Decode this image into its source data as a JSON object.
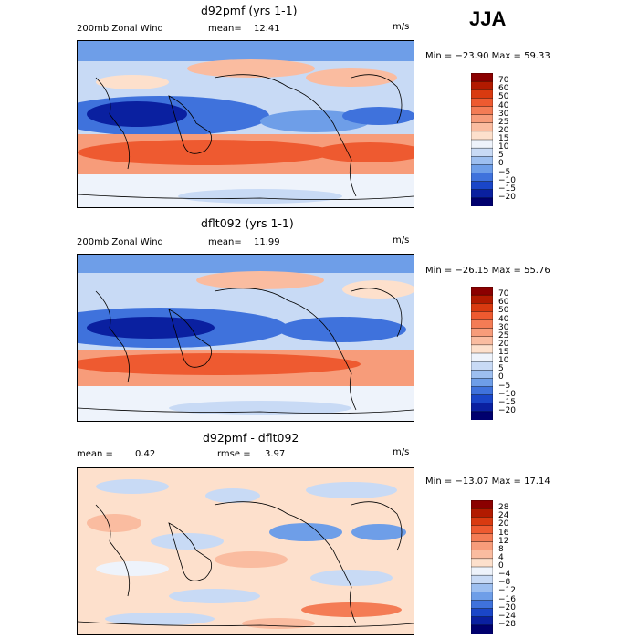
{
  "season": "JJA",
  "panels": [
    {
      "title": "d92pmf (yrs 1-1)",
      "left_label": "200mb Zonal Wind",
      "stat1_label": "mean=",
      "stat1_value": "12.41",
      "stat2_label": "",
      "stat2_value": "",
      "units": "m/s",
      "minmax": "Min = −23.90  Max =   59.33",
      "colorbar": {
        "levels": [
          "70",
          "60",
          "50",
          "40",
          "30",
          "25",
          "20",
          "15",
          "10",
          "5",
          "0",
          "−5",
          "−10",
          "−15",
          "−20"
        ],
        "colors": [
          "#8b0000",
          "#b21a00",
          "#d93a10",
          "#ee5a30",
          "#f47c55",
          "#f79c7a",
          "#fabca0",
          "#fde0cc",
          "#eef3fb",
          "#c8daf5",
          "#9dbff0",
          "#6e9ee8",
          "#3f72dc",
          "#1a46c8",
          "#0a20a0",
          "#00006e"
        ]
      },
      "chart_data": {
        "type": "heatmap",
        "title": "d92pmf (yrs 1-1)",
        "variable": "200mb Zonal Wind",
        "units": "m/s",
        "mean": 12.41,
        "min": -23.9,
        "max": 59.33,
        "contour_levels": [
          -20,
          -15,
          -10,
          -5,
          0,
          5,
          10,
          15,
          20,
          25,
          30,
          40,
          50,
          60,
          70
        ]
      }
    },
    {
      "title": "dflt092 (yrs 1-1)",
      "left_label": "200mb Zonal Wind",
      "stat1_label": "mean=",
      "stat1_value": "11.99",
      "stat2_label": "",
      "stat2_value": "",
      "units": "m/s",
      "minmax": "Min = −26.15  Max =   55.76",
      "colorbar": {
        "levels": [
          "70",
          "60",
          "50",
          "40",
          "30",
          "25",
          "20",
          "15",
          "10",
          "5",
          "0",
          "−5",
          "−10",
          "−15",
          "−20"
        ],
        "colors": [
          "#8b0000",
          "#b21a00",
          "#d93a10",
          "#ee5a30",
          "#f47c55",
          "#f79c7a",
          "#fabca0",
          "#fde0cc",
          "#eef3fb",
          "#c8daf5",
          "#9dbff0",
          "#6e9ee8",
          "#3f72dc",
          "#1a46c8",
          "#0a20a0",
          "#00006e"
        ]
      },
      "chart_data": {
        "type": "heatmap",
        "title": "dflt092 (yrs 1-1)",
        "variable": "200mb Zonal Wind",
        "units": "m/s",
        "mean": 11.99,
        "min": -26.15,
        "max": 55.76,
        "contour_levels": [
          -20,
          -15,
          -10,
          -5,
          0,
          5,
          10,
          15,
          20,
          25,
          30,
          40,
          50,
          60,
          70
        ]
      }
    },
    {
      "title": "d92pmf - dflt092",
      "left_label": "",
      "stat1_label": "mean =",
      "stat1_value": "0.42",
      "stat2_label": "rmse =",
      "stat2_value": "3.97",
      "units": "m/s",
      "minmax": "Min = −13.07  Max =   17.14",
      "colorbar": {
        "levels": [
          "28",
          "24",
          "20",
          "16",
          "12",
          "8",
          "4",
          "0",
          "−4",
          "−8",
          "−12",
          "−16",
          "−20",
          "−24",
          "−28"
        ],
        "colors": [
          "#8b0000",
          "#b21a00",
          "#d93a10",
          "#ee5a30",
          "#f47c55",
          "#f79c7a",
          "#fabca0",
          "#fde0cc",
          "#eef3fb",
          "#c8daf5",
          "#9dbff0",
          "#6e9ee8",
          "#3f72dc",
          "#1a46c8",
          "#0a20a0",
          "#00006e"
        ]
      },
      "chart_data": {
        "type": "heatmap",
        "title": "d92pmf - dflt092",
        "units": "m/s",
        "mean": 0.42,
        "rmse": 3.97,
        "min": -13.07,
        "max": 17.14,
        "contour_levels": [
          -28,
          -24,
          -20,
          -16,
          -12,
          -8,
          -4,
          0,
          4,
          8,
          12,
          16,
          20,
          24,
          28
        ]
      }
    }
  ]
}
